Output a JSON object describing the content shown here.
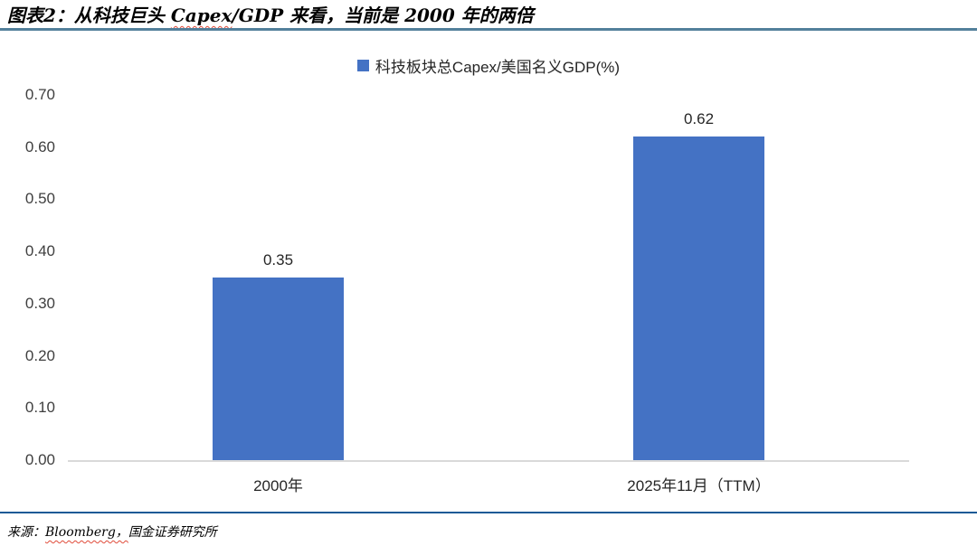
{
  "header": {
    "title_prefix": "图表2：从科技巨头 ",
    "title_spellchecked_word": "Capex",
    "title_suffix": "/GDP 来看，当前是 2000 年的两倍"
  },
  "chart_data": {
    "type": "bar",
    "title": "",
    "legend_label": "科技板块总Capex/美国名义GDP(%)",
    "legend_position": "top-center",
    "categories": [
      "2000年",
      "2025年11月（TTM）"
    ],
    "values": [
      0.35,
      0.62
    ],
    "value_labels": [
      "0.35",
      "0.62"
    ],
    "ylim": [
      0,
      0.7
    ],
    "ytick_step": 0.1,
    "ytick_labels": [
      "0.00",
      "0.10",
      "0.20",
      "0.30",
      "0.40",
      "0.50",
      "0.60",
      "0.70"
    ],
    "grid": false,
    "bar_color": "#4472C4"
  },
  "footer": {
    "source_label": "来源：",
    "source_spellchecked_word": "Bloomberg，",
    "source_suffix": "国金证券研究所"
  },
  "colors": {
    "bar": "#4472C4",
    "title_rule": "#53809B",
    "footer_rule": "#1A5A96",
    "axis_line": "#D9D9D9",
    "spellcheck_underline": "#E04B3A"
  }
}
